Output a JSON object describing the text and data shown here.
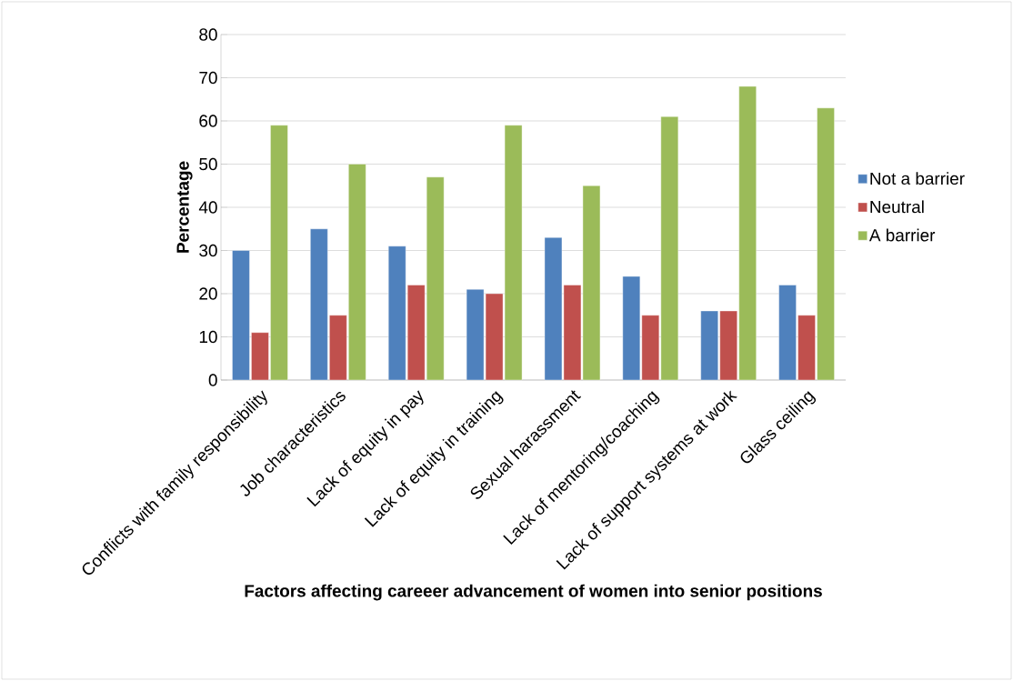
{
  "chart_data": {
    "type": "bar",
    "xlabel": "Factors affecting careeer advancement of women into senior positions",
    "ylabel": "Percentage",
    "categories": [
      "Conflicts with family responsibility",
      "Job characteristics",
      "Lack of equity in pay",
      "Lack of equity in training",
      "Sexual harassment",
      "Lack of mentoring/coaching",
      "Lack of support systems at work",
      "Glass ceiling"
    ],
    "series": [
      {
        "name": "Not a barrier",
        "color": "#4f81bd",
        "values": [
          30,
          35,
          31,
          21,
          33,
          24,
          16,
          22
        ]
      },
      {
        "name": "Neutral",
        "color": "#c0504d",
        "values": [
          11,
          15,
          22,
          20,
          22,
          15,
          16,
          15
        ]
      },
      {
        "name": "A barrier",
        "color": "#9bbb59",
        "values": [
          59,
          50,
          47,
          59,
          45,
          61,
          68,
          63
        ]
      }
    ],
    "ylim": [
      0,
      80
    ],
    "yticks": [
      0,
      10,
      20,
      30,
      40,
      50,
      60,
      70,
      80
    ],
    "grid": "y",
    "legend": "right"
  }
}
